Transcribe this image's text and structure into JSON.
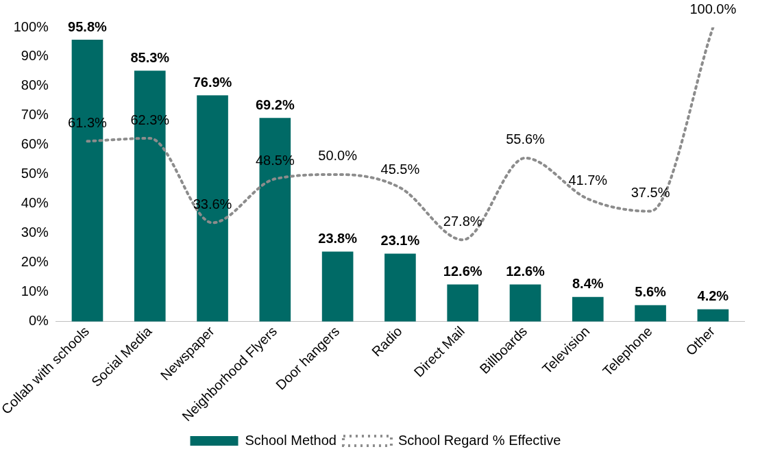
{
  "chart_data": {
    "type": "bar",
    "categories": [
      "Collab with schools",
      "Social Media",
      "Newspaper",
      "Neighborhood Flyers",
      "Door hangers",
      "Radio",
      "Direct Mail",
      "Billboards",
      "Television",
      "Telephone",
      "Other"
    ],
    "series": [
      {
        "name": "School Method",
        "color": "#006a66",
        "values": [
          95.8,
          85.3,
          76.9,
          69.2,
          23.8,
          23.1,
          12.6,
          12.6,
          8.4,
          5.6,
          4.2
        ],
        "value_labels": [
          "95.8%",
          "85.3%",
          "76.9%",
          "69.2%",
          "23.8%",
          "23.1%",
          "12.6%",
          "12.6%",
          "8.4%",
          "5.6%",
          "4.2%"
        ]
      },
      {
        "name": "School Regard % Effective",
        "type": "line",
        "color": "#8c8c8c",
        "line_style": "dotted",
        "marker": "none",
        "values": [
          61.3,
          62.3,
          33.6,
          48.5,
          50.0,
          45.5,
          27.8,
          55.6,
          41.7,
          37.5,
          100.0
        ],
        "value_labels": [
          "61.3%",
          "62.3%",
          "33.6%",
          "48.5%",
          "50.0%",
          "45.5%",
          "27.8%",
          "55.6%",
          "41.7%",
          "37.5%",
          "100.0%"
        ]
      }
    ],
    "ylim": [
      0,
      100
    ],
    "yticks": [
      {
        "value": 0,
        "label": "0%"
      },
      {
        "value": 10,
        "label": "10%"
      },
      {
        "value": 20,
        "label": "20%"
      },
      {
        "value": 30,
        "label": "30%"
      },
      {
        "value": 40,
        "label": "40%"
      },
      {
        "value": 50,
        "label": "50%"
      },
      {
        "value": 60,
        "label": "60%"
      },
      {
        "value": 70,
        "label": "70%"
      },
      {
        "value": 80,
        "label": "80%"
      },
      {
        "value": 90,
        "label": "90%"
      },
      {
        "value": 100,
        "label": "100%"
      }
    ],
    "grid": false,
    "legend": "bottom"
  }
}
